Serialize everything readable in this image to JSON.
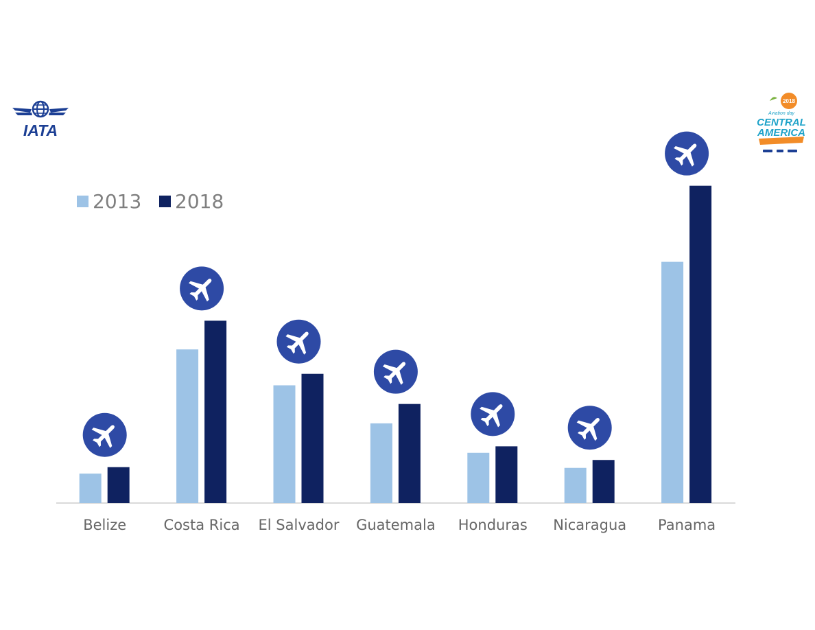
{
  "branding": {
    "left_logo_text": "IATA",
    "right_logo_badge": "2018",
    "right_logo_tagline": "Aviation day",
    "right_logo_line1": "CENTRAL",
    "right_logo_line2": "AMERICA"
  },
  "icons": {
    "marker": "airplane-icon"
  },
  "colors": {
    "series_2013": "#9dc3e6",
    "series_2018": "#0f2260",
    "marker_circle": "#2e4aa5",
    "axis": "#d9d9d9",
    "iata_blue": "#1c3f94",
    "event_orange": "#f28c28",
    "event_teal": "#1fa3c9"
  },
  "chart_data": {
    "type": "bar",
    "categories": [
      "Belize",
      "Costa Rica",
      "El Salvador",
      "Guatemala",
      "Honduras",
      "Nicaragua",
      "Panama"
    ],
    "series": [
      {
        "name": "2013",
        "values": [
          4.1,
          21.4,
          16.4,
          11.1,
          7.0,
          4.9,
          33.6
        ]
      },
      {
        "name": "2018",
        "values": [
          5.0,
          25.4,
          18.0,
          13.8,
          7.9,
          6.0,
          44.2
        ]
      }
    ],
    "ylim": [
      0,
      50
    ],
    "grid": false,
    "legend": "top-left",
    "markers": "airplane icon above each category"
  }
}
